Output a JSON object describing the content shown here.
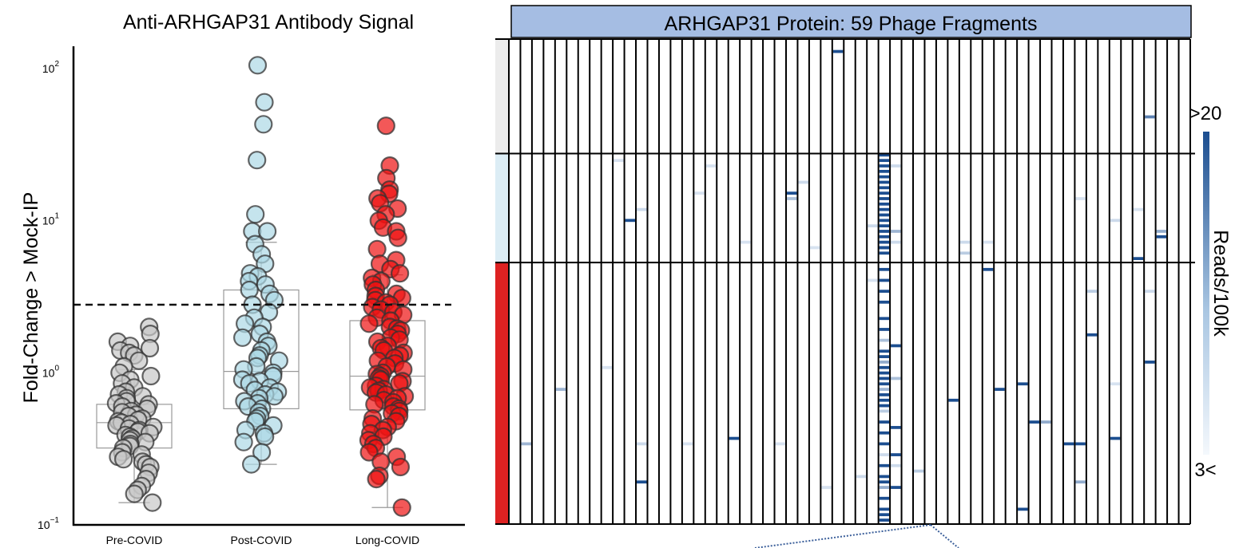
{
  "chart_data": [
    {
      "type": "scatter",
      "title": "Anti-ARHGAP31 Antibody Signal",
      "ylabel": "Fold-Change > Mock-IP",
      "yscale": "log",
      "ylim": [
        0.1,
        140
      ],
      "ytick_labels": [
        {
          "base": "10",
          "exp": "2",
          "value": 100
        },
        {
          "base": "10",
          "exp": "1",
          "value": 10
        },
        {
          "base": "10",
          "exp": "0",
          "value": 1
        },
        {
          "base": "10",
          "exp": "−1",
          "value": 0.1
        }
      ],
      "threshold": 2.8,
      "grid": false,
      "categories": [
        "Pre-COVID",
        "Post-COVID",
        "Long-COVID"
      ],
      "colors": [
        "#c8c8c8",
        "#add8e6",
        "#ee1111"
      ],
      "boxes": [
        {
          "q1": 0.32,
          "median": 0.47,
          "q3": 0.62,
          "whisker_low": 0.14,
          "whisker_high": 1.05
        },
        {
          "q1": 0.58,
          "median": 1.02,
          "q3": 3.5,
          "whisker_low": 0.25,
          "whisker_high": 7.2
        },
        {
          "q1": 0.57,
          "median": 0.95,
          "q3": 2.2,
          "whisker_low": 0.13,
          "whisker_high": 4.4
        }
      ],
      "series": [
        {
          "values": [
            2.0,
            1.8,
            1.6,
            1.5,
            1.45,
            1.4,
            1.35,
            1.3,
            1.2,
            1.1,
            1.0,
            0.95,
            0.9,
            0.85,
            0.8,
            0.75,
            0.72,
            0.7,
            0.68,
            0.65,
            0.63,
            0.62,
            0.6,
            0.58,
            0.56,
            0.55,
            0.53,
            0.52,
            0.5,
            0.49,
            0.48,
            0.47,
            0.46,
            0.45,
            0.44,
            0.43,
            0.42,
            0.41,
            0.4,
            0.39,
            0.38,
            0.37,
            0.36,
            0.35,
            0.34,
            0.33,
            0.32,
            0.3,
            0.29,
            0.28,
            0.27,
            0.26,
            0.25,
            0.24,
            0.22,
            0.2,
            0.18,
            0.17,
            0.16,
            0.14
          ]
        },
        {
          "values": [
            105,
            60,
            43,
            25,
            11,
            8.5,
            8.5,
            7,
            6,
            5.2,
            4.5,
            4.3,
            4,
            3.8,
            3.5,
            3.3,
            3,
            2.8,
            2.5,
            2.3,
            2.1,
            2.0,
            1.8,
            1.7,
            1.6,
            1.5,
            1.4,
            1.3,
            1.25,
            1.2,
            1.1,
            1.05,
            1.0,
            0.95,
            0.9,
            0.88,
            0.85,
            0.8,
            0.77,
            0.75,
            0.72,
            0.7,
            0.68,
            0.65,
            0.63,
            0.6,
            0.58,
            0.55,
            0.52,
            0.5,
            0.48,
            0.45,
            0.42,
            0.4,
            0.38,
            0.35,
            0.3,
            0.25
          ]
        },
        {
          "values": [
            42,
            23,
            19,
            16,
            15,
            14,
            13,
            12,
            11,
            10,
            9,
            8.5,
            7.7,
            6.5,
            5.5,
            5.2,
            4.8,
            4.5,
            4.2,
            4,
            3.8,
            3.5,
            3.3,
            3.2,
            3.1,
            3.0,
            2.9,
            2.8,
            2.7,
            2.6,
            2.5,
            2.4,
            2.3,
            2.2,
            2.1,
            2.0,
            1.95,
            1.9,
            1.8,
            1.7,
            1.65,
            1.6,
            1.5,
            1.45,
            1.4,
            1.35,
            1.3,
            1.25,
            1.2,
            1.15,
            1.1,
            1.05,
            1.0,
            0.98,
            0.95,
            0.92,
            0.9,
            0.88,
            0.85,
            0.82,
            0.8,
            0.78,
            0.76,
            0.74,
            0.72,
            0.7,
            0.68,
            0.66,
            0.64,
            0.62,
            0.6,
            0.58,
            0.56,
            0.54,
            0.52,
            0.5,
            0.48,
            0.46,
            0.44,
            0.42,
            0.4,
            0.38,
            0.36,
            0.34,
            0.32,
            0.3,
            0.28,
            0.26,
            0.24,
            0.21,
            0.2,
            0.13
          ]
        }
      ]
    },
    {
      "type": "heatmap",
      "title": "ARHGAP31 Protein: 59 Phage Fragments",
      "n_fragments": 59,
      "groups": [
        {
          "color": "#ececec",
          "rows": 21
        },
        {
          "color": "#dcedf5",
          "rows": 20
        },
        {
          "color": "#dd2222",
          "rows": 48
        }
      ],
      "colorbar": {
        "label": "Reads/100k",
        "max_label": ">20",
        "min_label": "3<",
        "min": 3,
        "max": 20
      },
      "cells": [
        {
          "col": 28,
          "row": 2,
          "v": 20
        },
        {
          "col": 9,
          "row": 22,
          "v": 3.5
        },
        {
          "col": 17,
          "row": 23,
          "v": 3.5
        },
        {
          "col": 55,
          "row": 14,
          "v": 13
        },
        {
          "col": 16,
          "row": 28,
          "v": 3.5
        },
        {
          "col": 25,
          "row": 26,
          "v": 4
        },
        {
          "col": 24,
          "row": 28,
          "v": 20
        },
        {
          "col": 24,
          "row": 29,
          "v": 6
        },
        {
          "col": 49,
          "row": 29,
          "v": 3.5
        },
        {
          "col": 11,
          "row": 31,
          "v": 4
        },
        {
          "col": 10,
          "row": 33,
          "v": 20
        },
        {
          "col": 56,
          "row": 35,
          "v": 8
        },
        {
          "col": 56,
          "row": 36,
          "v": 20
        },
        {
          "col": 52,
          "row": 33,
          "v": 4
        },
        {
          "col": 54,
          "row": 31,
          "v": 3.5
        },
        {
          "col": 31,
          "row": 34,
          "v": 4
        },
        {
          "col": 54,
          "row": 40,
          "v": 20
        },
        {
          "col": 31,
          "row": 44,
          "v": 3.5
        },
        {
          "col": 39,
          "row": 37,
          "v": 4
        },
        {
          "col": 41,
          "row": 37,
          "v": 3.5
        },
        {
          "col": 39,
          "row": 39,
          "v": 5
        },
        {
          "col": 20,
          "row": 37,
          "v": 3.5
        },
        {
          "col": 26,
          "row": 38,
          "v": 3.5
        },
        {
          "col": 32,
          "row": 21,
          "v": 20
        },
        {
          "col": 32,
          "row": 22,
          "v": 20
        },
        {
          "col": 32,
          "row": 23,
          "v": 20
        },
        {
          "col": 32,
          "row": 24,
          "v": 20
        },
        {
          "col": 32,
          "row": 25,
          "v": 20
        },
        {
          "col": 32,
          "row": 26,
          "v": 20
        },
        {
          "col": 32,
          "row": 27,
          "v": 20
        },
        {
          "col": 32,
          "row": 28,
          "v": 20
        },
        {
          "col": 32,
          "row": 29,
          "v": 20
        },
        {
          "col": 32,
          "row": 30,
          "v": 20
        },
        {
          "col": 32,
          "row": 31,
          "v": 20
        },
        {
          "col": 32,
          "row": 32,
          "v": 20
        },
        {
          "col": 32,
          "row": 33,
          "v": 20
        },
        {
          "col": 32,
          "row": 34,
          "v": 20
        },
        {
          "col": 32,
          "row": 35,
          "v": 20
        },
        {
          "col": 32,
          "row": 36,
          "v": 20
        },
        {
          "col": 32,
          "row": 37,
          "v": 20
        },
        {
          "col": 32,
          "row": 38,
          "v": 20
        },
        {
          "col": 32,
          "row": 39,
          "v": 20
        },
        {
          "col": 33,
          "row": 35,
          "v": 7
        },
        {
          "col": 33,
          "row": 37,
          "v": 4
        },
        {
          "col": 33,
          "row": 23,
          "v": 4
        },
        {
          "col": 32,
          "row": 38,
          "v": 20
        },
        {
          "col": 32,
          "row": 42,
          "v": 20
        },
        {
          "col": 32,
          "row": 44,
          "v": 20
        },
        {
          "col": 32,
          "row": 46,
          "v": 20
        },
        {
          "col": 32,
          "row": 48,
          "v": 20
        },
        {
          "col": 32,
          "row": 51,
          "v": 20
        },
        {
          "col": 32,
          "row": 53,
          "v": 20
        },
        {
          "col": 32,
          "row": 55,
          "v": 6
        },
        {
          "col": 32,
          "row": 57,
          "v": 20
        },
        {
          "col": 32,
          "row": 58,
          "v": 20
        },
        {
          "col": 32,
          "row": 59,
          "v": 8
        },
        {
          "col": 32,
          "row": 60,
          "v": 20
        },
        {
          "col": 32,
          "row": 61,
          "v": 20
        },
        {
          "col": 32,
          "row": 62,
          "v": 20
        },
        {
          "col": 32,
          "row": 63,
          "v": 20
        },
        {
          "col": 32,
          "row": 64,
          "v": 7
        },
        {
          "col": 32,
          "row": 65,
          "v": 20
        },
        {
          "col": 32,
          "row": 66,
          "v": 20
        },
        {
          "col": 32,
          "row": 67,
          "v": 20
        },
        {
          "col": 32,
          "row": 68,
          "v": 5
        },
        {
          "col": 32,
          "row": 70,
          "v": 20
        },
        {
          "col": 32,
          "row": 72,
          "v": 20
        },
        {
          "col": 32,
          "row": 74,
          "v": 20
        },
        {
          "col": 32,
          "row": 76,
          "v": 4
        },
        {
          "col": 32,
          "row": 78,
          "v": 20
        },
        {
          "col": 32,
          "row": 80,
          "v": 20
        },
        {
          "col": 32,
          "row": 81,
          "v": 20
        },
        {
          "col": 32,
          "row": 82,
          "v": 8
        },
        {
          "col": 32,
          "row": 84,
          "v": 20
        },
        {
          "col": 32,
          "row": 86,
          "v": 20
        },
        {
          "col": 32,
          "row": 87,
          "v": 20
        },
        {
          "col": 32,
          "row": 88,
          "v": 20
        },
        {
          "col": 33,
          "row": 56,
          "v": 20
        },
        {
          "col": 33,
          "row": 62,
          "v": 6
        },
        {
          "col": 33,
          "row": 71,
          "v": 20
        },
        {
          "col": 33,
          "row": 76,
          "v": 20
        },
        {
          "col": 33,
          "row": 82,
          "v": 20
        },
        {
          "col": 33,
          "row": 78,
          "v": 4
        },
        {
          "col": 41,
          "row": 42,
          "v": 20
        },
        {
          "col": 50,
          "row": 46,
          "v": 5
        },
        {
          "col": 50,
          "row": 54,
          "v": 20
        },
        {
          "col": 44,
          "row": 63,
          "v": 20
        },
        {
          "col": 42,
          "row": 64,
          "v": 20
        },
        {
          "col": 38,
          "row": 66,
          "v": 20
        },
        {
          "col": 45,
          "row": 70,
          "v": 20
        },
        {
          "col": 46,
          "row": 70,
          "v": 8
        },
        {
          "col": 48,
          "row": 74,
          "v": 20
        },
        {
          "col": 49,
          "row": 74,
          "v": 20
        },
        {
          "col": 52,
          "row": 73,
          "v": 20
        },
        {
          "col": 55,
          "row": 59,
          "v": 20
        },
        {
          "col": 4,
          "row": 64,
          "v": 7
        },
        {
          "col": 1,
          "row": 74,
          "v": 7
        },
        {
          "col": 19,
          "row": 73,
          "v": 20
        },
        {
          "col": 11,
          "row": 81,
          "v": 20
        },
        {
          "col": 44,
          "row": 86,
          "v": 20
        },
        {
          "col": 15,
          "row": 74,
          "v": 3.5
        },
        {
          "col": 23,
          "row": 74,
          "v": 3.5
        },
        {
          "col": 30,
          "row": 80,
          "v": 4
        },
        {
          "col": 35,
          "row": 79,
          "v": 5
        },
        {
          "col": 49,
          "row": 81,
          "v": 8
        },
        {
          "col": 11,
          "row": 74,
          "v": 4
        },
        {
          "col": 55,
          "row": 46,
          "v": 4
        },
        {
          "col": 52,
          "row": 63,
          "v": 3.5
        },
        {
          "col": 27,
          "row": 82,
          "v": 3.5
        },
        {
          "col": 8,
          "row": 60,
          "v": 3.5
        }
      ]
    }
  ]
}
